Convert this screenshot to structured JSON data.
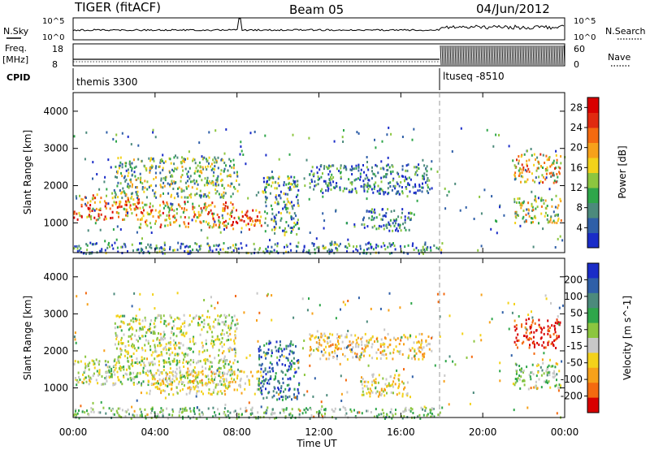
{
  "header": {
    "title": "TIGER (fitACF)",
    "beam": "Beam 05",
    "date": "04/Jun/2012"
  },
  "top_panels": {
    "nsky_label": "N.Sky",
    "nsky_ticks": [
      "10^5",
      "10^0"
    ],
    "nsearch_label": "N.Search",
    "nsearch_ticks": [
      "10^5",
      "10^0"
    ],
    "freq_label": "Freq.",
    "freq_unit": "[MHz]",
    "freq_ticks": [
      "18",
      "8"
    ],
    "nave_label": "Nave",
    "nave_ticks": [
      "60",
      "0"
    ],
    "cpid_label": "CPID",
    "cpid_segments": [
      {
        "name": "themis 3300",
        "start_hour": 0
      },
      {
        "name": "ltuseq -8510",
        "start_hour": 18
      }
    ]
  },
  "chart_data": [
    {
      "type": "heatmap",
      "quantity": "Power",
      "ylabel": "Slant Range [km]",
      "xlabel": "Time UT",
      "xlim": [
        0,
        24
      ],
      "ylim": [
        200,
        4500
      ],
      "x_ticks": [
        "00:00",
        "04:00",
        "08:00",
        "12:00",
        "16:00",
        "20:00",
        "00:00"
      ],
      "y_ticks": [
        1000,
        2000,
        3000,
        4000
      ],
      "colorbar_label": "Power [dB]",
      "colorbar_ticks": [
        4,
        8,
        12,
        16,
        20,
        24,
        28
      ],
      "colorbar_range": [
        0,
        30
      ],
      "colors": [
        "#1a2cc8",
        "#2f5fa8",
        "#4c8a7c",
        "#2fa64a",
        "#8cc63f",
        "#f3d21a",
        "#f7a11a",
        "#f46a10",
        "#e02a10",
        "#d80000"
      ],
      "regions": [
        {
          "t": [
            0,
            3.2
          ],
          "r": [
            1100,
            1800
          ],
          "v": 21
        },
        {
          "t": [
            3.2,
            7.8
          ],
          "r": [
            900,
            1600
          ],
          "v": 19
        },
        {
          "t": [
            7.6,
            9.2
          ],
          "r": [
            850,
            1400
          ],
          "v": 24
        },
        {
          "t": [
            2.0,
            8.0
          ],
          "r": [
            1700,
            2800
          ],
          "v": 12
        },
        {
          "t": [
            9.2,
            11.0
          ],
          "r": [
            700,
            2300
          ],
          "v": 9
        },
        {
          "t": [
            11.5,
            17.5
          ],
          "r": [
            1800,
            2600
          ],
          "v": 6
        },
        {
          "t": [
            14.0,
            16.5
          ],
          "r": [
            800,
            1400
          ],
          "v": 6
        },
        {
          "t": [
            0,
            18
          ],
          "r": [
            200,
            500
          ],
          "v": 7
        },
        {
          "t": [
            21.5,
            23.8
          ],
          "r": [
            1000,
            1700
          ],
          "v": 14
        },
        {
          "t": [
            21.5,
            23.8
          ],
          "r": [
            2100,
            2900
          ],
          "v": 17
        }
      ]
    },
    {
      "type": "heatmap",
      "quantity": "Velocity",
      "ylabel": "Slant Range [km]",
      "xlabel": "Time UT",
      "xlim": [
        0,
        24
      ],
      "ylim": [
        200,
        4500
      ],
      "x_ticks": [
        "00:00",
        "04:00",
        "08:00",
        "12:00",
        "16:00",
        "20:00",
        "00:00"
      ],
      "y_ticks": [
        1000,
        2000,
        3000,
        4000
      ],
      "colorbar_label": "Velocity [m s^-1]",
      "colorbar_ticks": [
        "200",
        "100",
        "50",
        "15",
        "-15",
        "-50",
        "-100",
        "-200"
      ],
      "colorbar_range": [
        -250,
        250
      ],
      "colors": [
        "#1a2cc8",
        "#2f5fa8",
        "#4c8a7c",
        "#2fa64a",
        "#8cc63f",
        "#c8c8c8",
        "#f3d21a",
        "#f7a11a",
        "#f46a10",
        "#d80000"
      ],
      "regions": [
        {
          "t": [
            0,
            7.8
          ],
          "r": [
            1100,
            1800
          ],
          "v": 0
        },
        {
          "t": [
            3.5,
            9.2
          ],
          "r": [
            850,
            1500
          ],
          "v": -60
        },
        {
          "t": [
            2.0,
            8.0
          ],
          "r": [
            1700,
            3000
          ],
          "v": -20
        },
        {
          "t": [
            9.0,
            11.0
          ],
          "r": [
            700,
            2300
          ],
          "v": 150
        },
        {
          "t": [
            11.5,
            17.5
          ],
          "r": [
            1800,
            2500
          ],
          "v": -80
        },
        {
          "t": [
            14.0,
            16.5
          ],
          "r": [
            800,
            1400
          ],
          "v": -60
        },
        {
          "t": [
            0,
            18
          ],
          "r": [
            200,
            500
          ],
          "v": 40
        },
        {
          "t": [
            21.5,
            23.8
          ],
          "r": [
            2100,
            2900
          ],
          "v": -220
        },
        {
          "t": [
            21.5,
            23.8
          ],
          "r": [
            1000,
            1700
          ],
          "v": 30
        }
      ]
    }
  ]
}
